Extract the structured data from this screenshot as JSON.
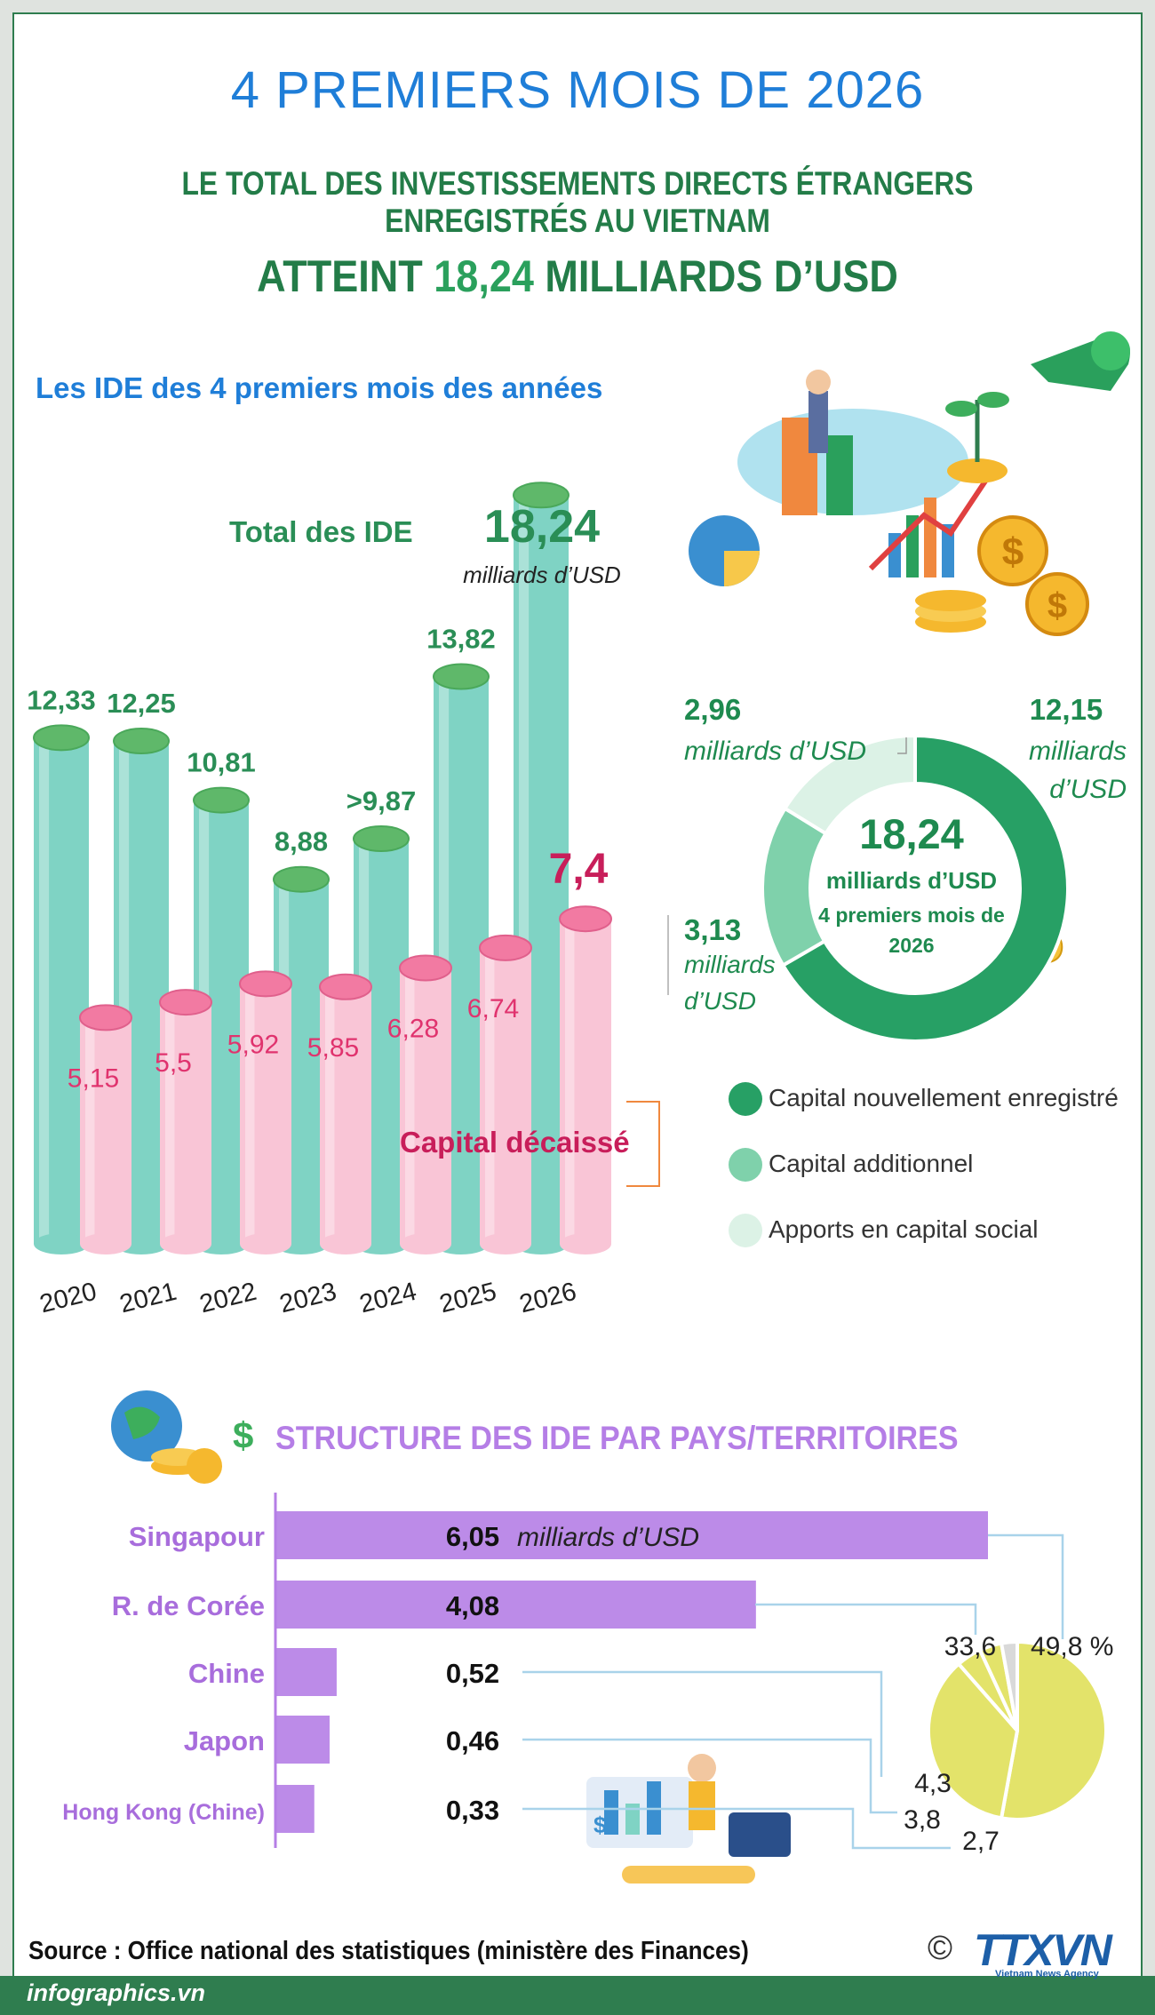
{
  "header": {
    "title": "4 PREMIERS MOIS DE 2026",
    "subtitle": "LE TOTAL DES INVESTISSEMENTS DIRECTS ÉTRANGERS ENREGISTRÉS AU VIETNAM",
    "headline_prefix": "ATTEINT ",
    "headline_value": "18,24",
    "headline_suffix": " MILLIARDS D’USD"
  },
  "section1": {
    "title": "Les IDE des 4 premiers mois des années",
    "total_label": "Total des IDE",
    "total_value": "18,24",
    "total_unit": "milliards d’USD",
    "disbursed_label": "Capital décaissé"
  },
  "donut": {
    "center_value": "18,24",
    "center_unit": "milliards d’USD",
    "center_sub1": "4 premiers mois de",
    "center_sub2": "2026",
    "label_new_value": "12,15",
    "label_new_unit1": "milliards",
    "label_new_unit2": "d’USD",
    "label_social_value": "2,96",
    "label_social_unit": "milliards d’USD",
    "label_add_value": "3,13",
    "label_add_unit1": "milliards",
    "label_add_unit2": "d’USD"
  },
  "legend": [
    {
      "label": "Capital nouvellement enregistré",
      "color": "#27a065"
    },
    {
      "label": "Capital additionnel",
      "color": "#7fd1ab"
    },
    {
      "label": "Apports en capital social",
      "color": "#dcf2e6"
    }
  ],
  "section2": {
    "title": "STRUCTURE DES IDE PAR PAYS/TERRITOIRES",
    "unit_note": "milliards d’USD"
  },
  "footer": {
    "source": "Source : Office national des statistiques (ministère des Finances)",
    "site": "infographics.vn",
    "copyright": "©",
    "logo": "TTXVN",
    "logo_sub": "Vietnam News Agency"
  },
  "colors": {
    "title_blue": "#1f7ed8",
    "dark_green": "#237c48",
    "teal_bar": "#7fd3c4",
    "pink_bar": "#f9c5d6",
    "pink_label": "#e0336e",
    "purple": "#b57ee6",
    "yellow_pie": "#e3e36a"
  },
  "chart_data": [
    {
      "type": "bar",
      "title": "Les IDE des 4 premiers mois des années",
      "categories": [
        "2020",
        "2021",
        "2022",
        "2023",
        "2024",
        "2025",
        "2026"
      ],
      "series": [
        {
          "name": "Total des IDE",
          "values": [
            12.33,
            12.25,
            10.81,
            8.88,
            9.87,
            13.82,
            18.24
          ],
          "labels": [
            "12,33",
            "12,25",
            "10,81",
            "8,88",
            ">9,87",
            "13,82",
            ""
          ]
        },
        {
          "name": "Capital décaissé",
          "values": [
            5.15,
            5.5,
            5.92,
            5.85,
            6.28,
            6.74,
            7.4
          ],
          "labels": [
            "5,15",
            "5,5",
            "5,92",
            "5,85",
            "6,28",
            "6,74",
            "7,4"
          ]
        }
      ],
      "ylim": [
        0,
        20
      ]
    },
    {
      "type": "pie",
      "title": "",
      "slices": [
        {
          "name": "Capital nouvellement enregistré",
          "value": 12.15
        },
        {
          "name": "Capital additionnel",
          "value": 3.13
        },
        {
          "name": "Apports en capital social",
          "value": 2.96
        }
      ],
      "total": 18.24
    },
    {
      "type": "bar",
      "title": "STRUCTURE DES IDE PAR PAYS/TERRITOIRES",
      "categories": [
        "Singapour",
        "R. de Corée",
        "Chine",
        "Japon",
        "Hong Kong (Chine)"
      ],
      "values": [
        6.05,
        4.08,
        0.52,
        0.46,
        0.33
      ],
      "value_labels": [
        "6,05",
        "4,08",
        "0,52",
        "0,46",
        "0,33"
      ],
      "xlim": [
        0,
        6.05
      ]
    },
    {
      "type": "pie",
      "title": "",
      "slices": [
        {
          "name": "Singapour",
          "value": 49.8,
          "label": "49,8 %"
        },
        {
          "name": "R. de Corée",
          "value": 33.6,
          "label": "33,6"
        },
        {
          "name": "Chine",
          "value": 4.3,
          "label": "4,3"
        },
        {
          "name": "Japon",
          "value": 3.8,
          "label": "3,8"
        },
        {
          "name": "Hong Kong (Chine)",
          "value": 2.7,
          "label": "2,7"
        }
      ]
    }
  ]
}
